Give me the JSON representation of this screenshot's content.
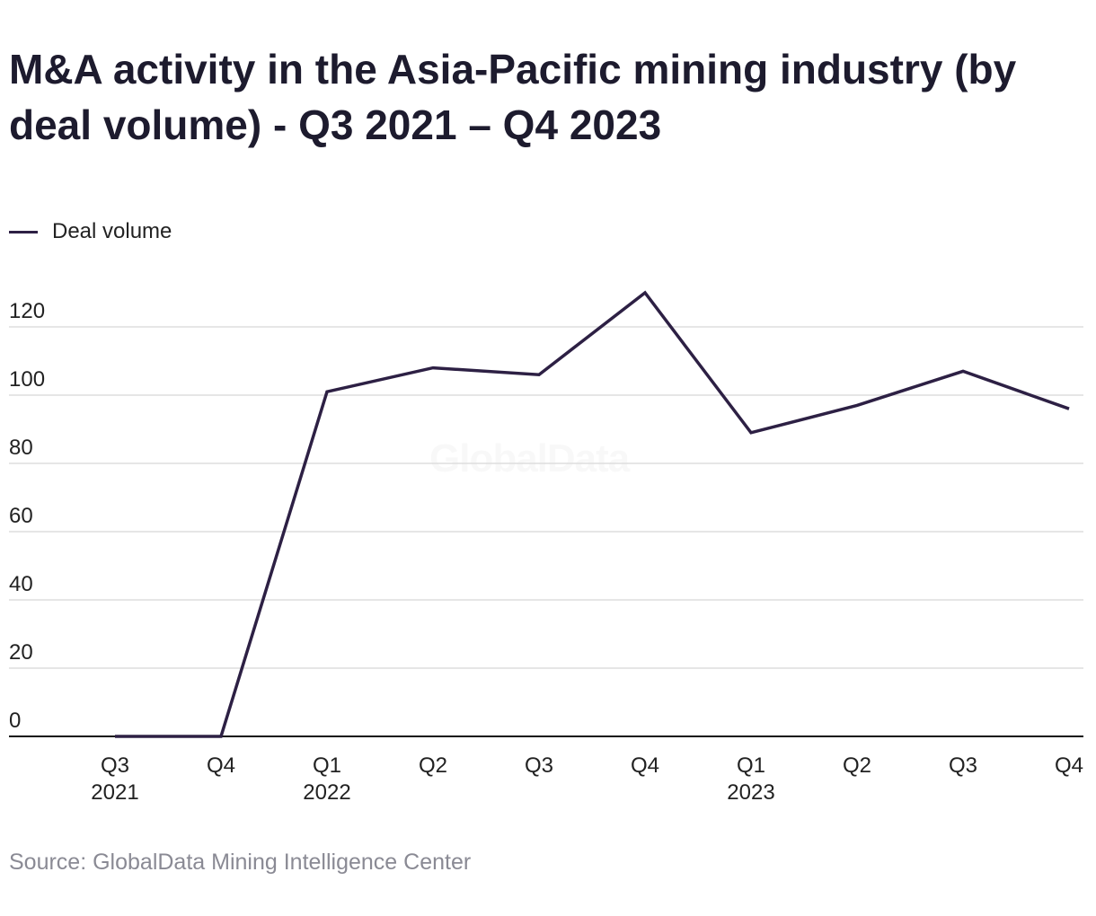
{
  "title": "M&A activity in the Asia-Pacific mining industry (by deal volume) - Q3 2021 – Q4 2023",
  "source": "Source: GlobalData Mining Intelligence Center",
  "watermark": "GlobalData",
  "colors": {
    "line": "#2d2044",
    "grid": "#dddddd",
    "axis": "#111111",
    "text": "#222222"
  },
  "chart_data": {
    "type": "line",
    "title": "M&A activity in the Asia-Pacific mining industry (by deal volume) - Q3 2021 – Q4 2023",
    "xlabel": "",
    "ylabel": "",
    "categories": [
      [
        "Q3",
        "2021"
      ],
      [
        "Q4",
        ""
      ],
      [
        "Q1",
        "2022"
      ],
      [
        "Q2",
        ""
      ],
      [
        "Q3",
        ""
      ],
      [
        "Q4",
        ""
      ],
      [
        "Q1",
        "2023"
      ],
      [
        "Q2",
        ""
      ],
      [
        "Q3",
        ""
      ],
      [
        "Q4",
        ""
      ]
    ],
    "series": [
      {
        "name": "Deal volume",
        "values": [
          0,
          0,
          101,
          108,
          106,
          130,
          89,
          97,
          107,
          96
        ]
      }
    ],
    "ylim": [
      0,
      130
    ],
    "yticks": [
      0,
      20,
      40,
      60,
      80,
      100,
      120
    ],
    "grid": true,
    "legend": "top-left"
  }
}
